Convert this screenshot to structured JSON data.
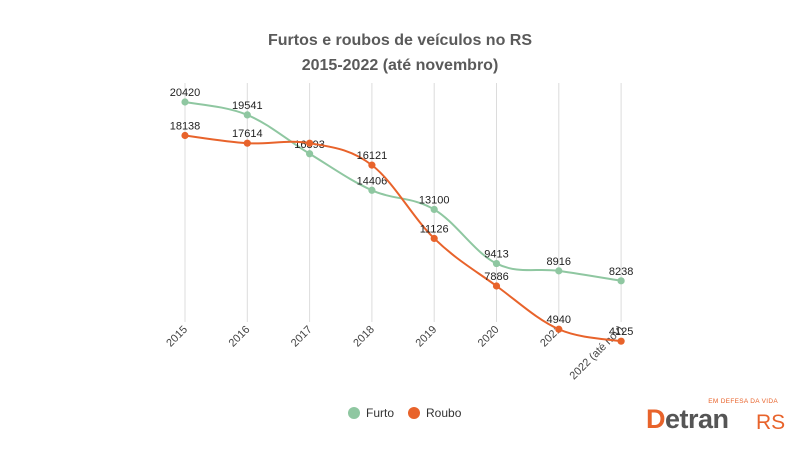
{
  "title_line1": "Furtos e roubos de veículos no RS",
  "title_line2": "2015-2022 (até novembro)",
  "chart_data": {
    "type": "line",
    "title": "Furtos e roubos de veículos no RS 2015-2022 (até novembro)",
    "categories": [
      "2015",
      "2016",
      "2017",
      "2018",
      "2019",
      "2020",
      "2021",
      "2022 (até nov)"
    ],
    "series": [
      {
        "name": "Furto",
        "color": "#8fc7a1",
        "values": [
          20420,
          19541,
          16893,
          14406,
          13100,
          9413,
          8916,
          8238
        ]
      },
      {
        "name": "Roubo",
        "color": "#e8632b",
        "values": [
          18138,
          17614,
          17614,
          16121,
          11126,
          7886,
          4940,
          4125
        ]
      }
    ],
    "roubo_2017_label": "",
    "grid": "vertical",
    "legend_position": "bottom"
  },
  "legend": [
    {
      "label": "Furto",
      "color": "#8fc7a1"
    },
    {
      "label": "Roubo",
      "color": "#e8632b"
    }
  ],
  "logo": {
    "tagline": "EM DEFESA DA VIDA",
    "letter": "D",
    "word": "etran",
    "suffix": "RS"
  }
}
